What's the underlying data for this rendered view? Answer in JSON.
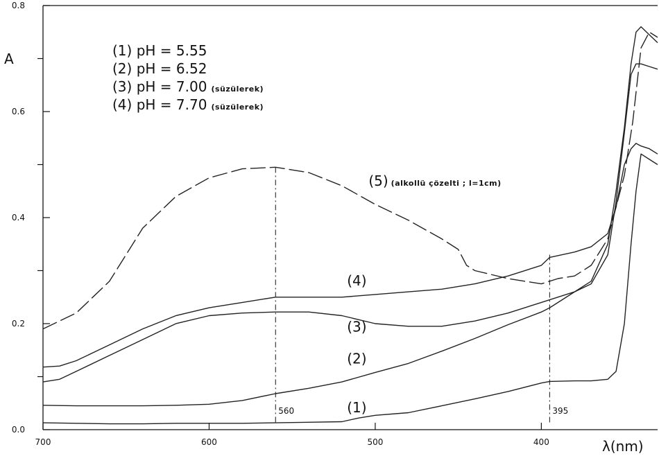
{
  "chart_data": {
    "type": "line",
    "title": "",
    "xlabel": "λ(nm)",
    "ylabel": "A",
    "xlim": [
      700,
      330
    ],
    "ylim": [
      0.0,
      0.8
    ],
    "x_reversed": true,
    "grid": false,
    "x_ticks": [
      700,
      600,
      500,
      400
    ],
    "x_tick_labels": [
      "700",
      "600",
      "500",
      "400"
    ],
    "y_ticks_labeled": [
      0.0,
      0.2,
      0.4,
      0.6,
      0.8
    ],
    "y_tick_labels": [
      "0.0",
      "0.2",
      "0.4",
      "0.6",
      "0.8"
    ],
    "y_ticks_minor": [
      0.1,
      0.3,
      0.5,
      0.7
    ],
    "legend": [
      {
        "num": "(1)",
        "text": "pH = 5.55",
        "note": ""
      },
      {
        "num": "(2)",
        "text": "pH = 6.52",
        "note": ""
      },
      {
        "num": "(3)",
        "text": "pH = 7.00",
        "note": "(süzülerek)"
      },
      {
        "num": "(4)",
        "text": "pH = 7.70",
        "note": "(süzülerek)"
      }
    ],
    "series": [
      {
        "name": "(1)",
        "label_pos": [
          517,
          0.033
        ],
        "dashed": false,
        "points": [
          [
            700,
            0.013
          ],
          [
            680,
            0.012
          ],
          [
            660,
            0.011
          ],
          [
            640,
            0.011
          ],
          [
            620,
            0.012
          ],
          [
            600,
            0.012
          ],
          [
            580,
            0.012
          ],
          [
            560,
            0.013
          ],
          [
            540,
            0.014
          ],
          [
            520,
            0.015
          ],
          [
            510,
            0.022
          ],
          [
            500,
            0.027
          ],
          [
            480,
            0.032
          ],
          [
            460,
            0.045
          ],
          [
            440,
            0.058
          ],
          [
            420,
            0.072
          ],
          [
            400,
            0.088
          ],
          [
            395,
            0.091
          ],
          [
            380,
            0.092
          ],
          [
            370,
            0.092
          ],
          [
            360,
            0.095
          ],
          [
            355,
            0.11
          ],
          [
            350,
            0.2
          ],
          [
            346,
            0.35
          ],
          [
            343,
            0.45
          ],
          [
            340,
            0.52
          ],
          [
            335,
            0.51
          ],
          [
            330,
            0.5
          ]
        ]
      },
      {
        "name": "(2)",
        "label_pos": [
          517,
          0.125
        ],
        "dashed": false,
        "points": [
          [
            700,
            0.046
          ],
          [
            680,
            0.045
          ],
          [
            660,
            0.045
          ],
          [
            640,
            0.045
          ],
          [
            620,
            0.046
          ],
          [
            600,
            0.048
          ],
          [
            580,
            0.055
          ],
          [
            560,
            0.068
          ],
          [
            540,
            0.078
          ],
          [
            520,
            0.09
          ],
          [
            500,
            0.108
          ],
          [
            480,
            0.125
          ],
          [
            460,
            0.148
          ],
          [
            440,
            0.172
          ],
          [
            420,
            0.198
          ],
          [
            400,
            0.222
          ],
          [
            395,
            0.23
          ],
          [
            380,
            0.26
          ],
          [
            370,
            0.28
          ],
          [
            360,
            0.35
          ],
          [
            355,
            0.45
          ],
          [
            350,
            0.57
          ],
          [
            346,
            0.69
          ],
          [
            343,
            0.75
          ],
          [
            340,
            0.76
          ],
          [
            335,
            0.745
          ],
          [
            330,
            0.73
          ]
        ]
      },
      {
        "name": "(3)",
        "label_pos": [
          517,
          0.185
        ],
        "dashed": false,
        "points": [
          [
            700,
            0.09
          ],
          [
            690,
            0.095
          ],
          [
            680,
            0.11
          ],
          [
            660,
            0.14
          ],
          [
            640,
            0.17
          ],
          [
            620,
            0.2
          ],
          [
            600,
            0.215
          ],
          [
            580,
            0.22
          ],
          [
            560,
            0.222
          ],
          [
            540,
            0.222
          ],
          [
            520,
            0.215
          ],
          [
            500,
            0.2
          ],
          [
            480,
            0.195
          ],
          [
            460,
            0.195
          ],
          [
            440,
            0.205
          ],
          [
            420,
            0.22
          ],
          [
            400,
            0.24
          ],
          [
            380,
            0.26
          ],
          [
            370,
            0.275
          ],
          [
            360,
            0.33
          ],
          [
            355,
            0.43
          ],
          [
            350,
            0.56
          ],
          [
            346,
            0.67
          ],
          [
            343,
            0.69
          ],
          [
            340,
            0.69
          ],
          [
            335,
            0.685
          ],
          [
            330,
            0.68
          ]
        ]
      },
      {
        "name": "(4)",
        "label_pos": [
          517,
          0.272
        ],
        "dashed": false,
        "points": [
          [
            700,
            0.118
          ],
          [
            690,
            0.12
          ],
          [
            680,
            0.13
          ],
          [
            660,
            0.16
          ],
          [
            640,
            0.19
          ],
          [
            620,
            0.215
          ],
          [
            600,
            0.23
          ],
          [
            580,
            0.24
          ],
          [
            560,
            0.25
          ],
          [
            540,
            0.25
          ],
          [
            520,
            0.25
          ],
          [
            500,
            0.255
          ],
          [
            480,
            0.26
          ],
          [
            460,
            0.265
          ],
          [
            440,
            0.275
          ],
          [
            420,
            0.29
          ],
          [
            400,
            0.31
          ],
          [
            395,
            0.325
          ],
          [
            380,
            0.335
          ],
          [
            370,
            0.345
          ],
          [
            360,
            0.37
          ],
          [
            355,
            0.42
          ],
          [
            350,
            0.5
          ],
          [
            346,
            0.53
          ],
          [
            343,
            0.54
          ],
          [
            340,
            0.535
          ],
          [
            335,
            0.53
          ],
          [
            330,
            0.52
          ]
        ]
      },
      {
        "name": "(5)",
        "label_pos": [
          504,
          0.46
        ],
        "note": "(alkollü çözelti ; l=1cm)",
        "dashed": true,
        "points": [
          [
            700,
            0.19
          ],
          [
            680,
            0.22
          ],
          [
            660,
            0.28
          ],
          [
            650,
            0.33
          ],
          [
            640,
            0.38
          ],
          [
            620,
            0.44
          ],
          [
            600,
            0.475
          ],
          [
            580,
            0.492
          ],
          [
            560,
            0.495
          ],
          [
            540,
            0.485
          ],
          [
            520,
            0.46
          ],
          [
            500,
            0.425
          ],
          [
            480,
            0.395
          ],
          [
            460,
            0.36
          ],
          [
            450,
            0.34
          ],
          [
            445,
            0.31
          ],
          [
            440,
            0.3
          ],
          [
            420,
            0.285
          ],
          [
            400,
            0.275
          ],
          [
            395,
            0.28
          ],
          [
            390,
            0.285
          ],
          [
            380,
            0.29
          ],
          [
            370,
            0.31
          ],
          [
            360,
            0.36
          ],
          [
            350,
            0.48
          ],
          [
            345,
            0.58
          ],
          [
            340,
            0.72
          ],
          [
            335,
            0.75
          ],
          [
            330,
            0.74
          ]
        ]
      }
    ],
    "reference_lines": [
      {
        "x": 560,
        "y_top": 0.495,
        "label": "560"
      },
      {
        "x": 395,
        "y_top": 0.33,
        "label": "395"
      }
    ]
  }
}
